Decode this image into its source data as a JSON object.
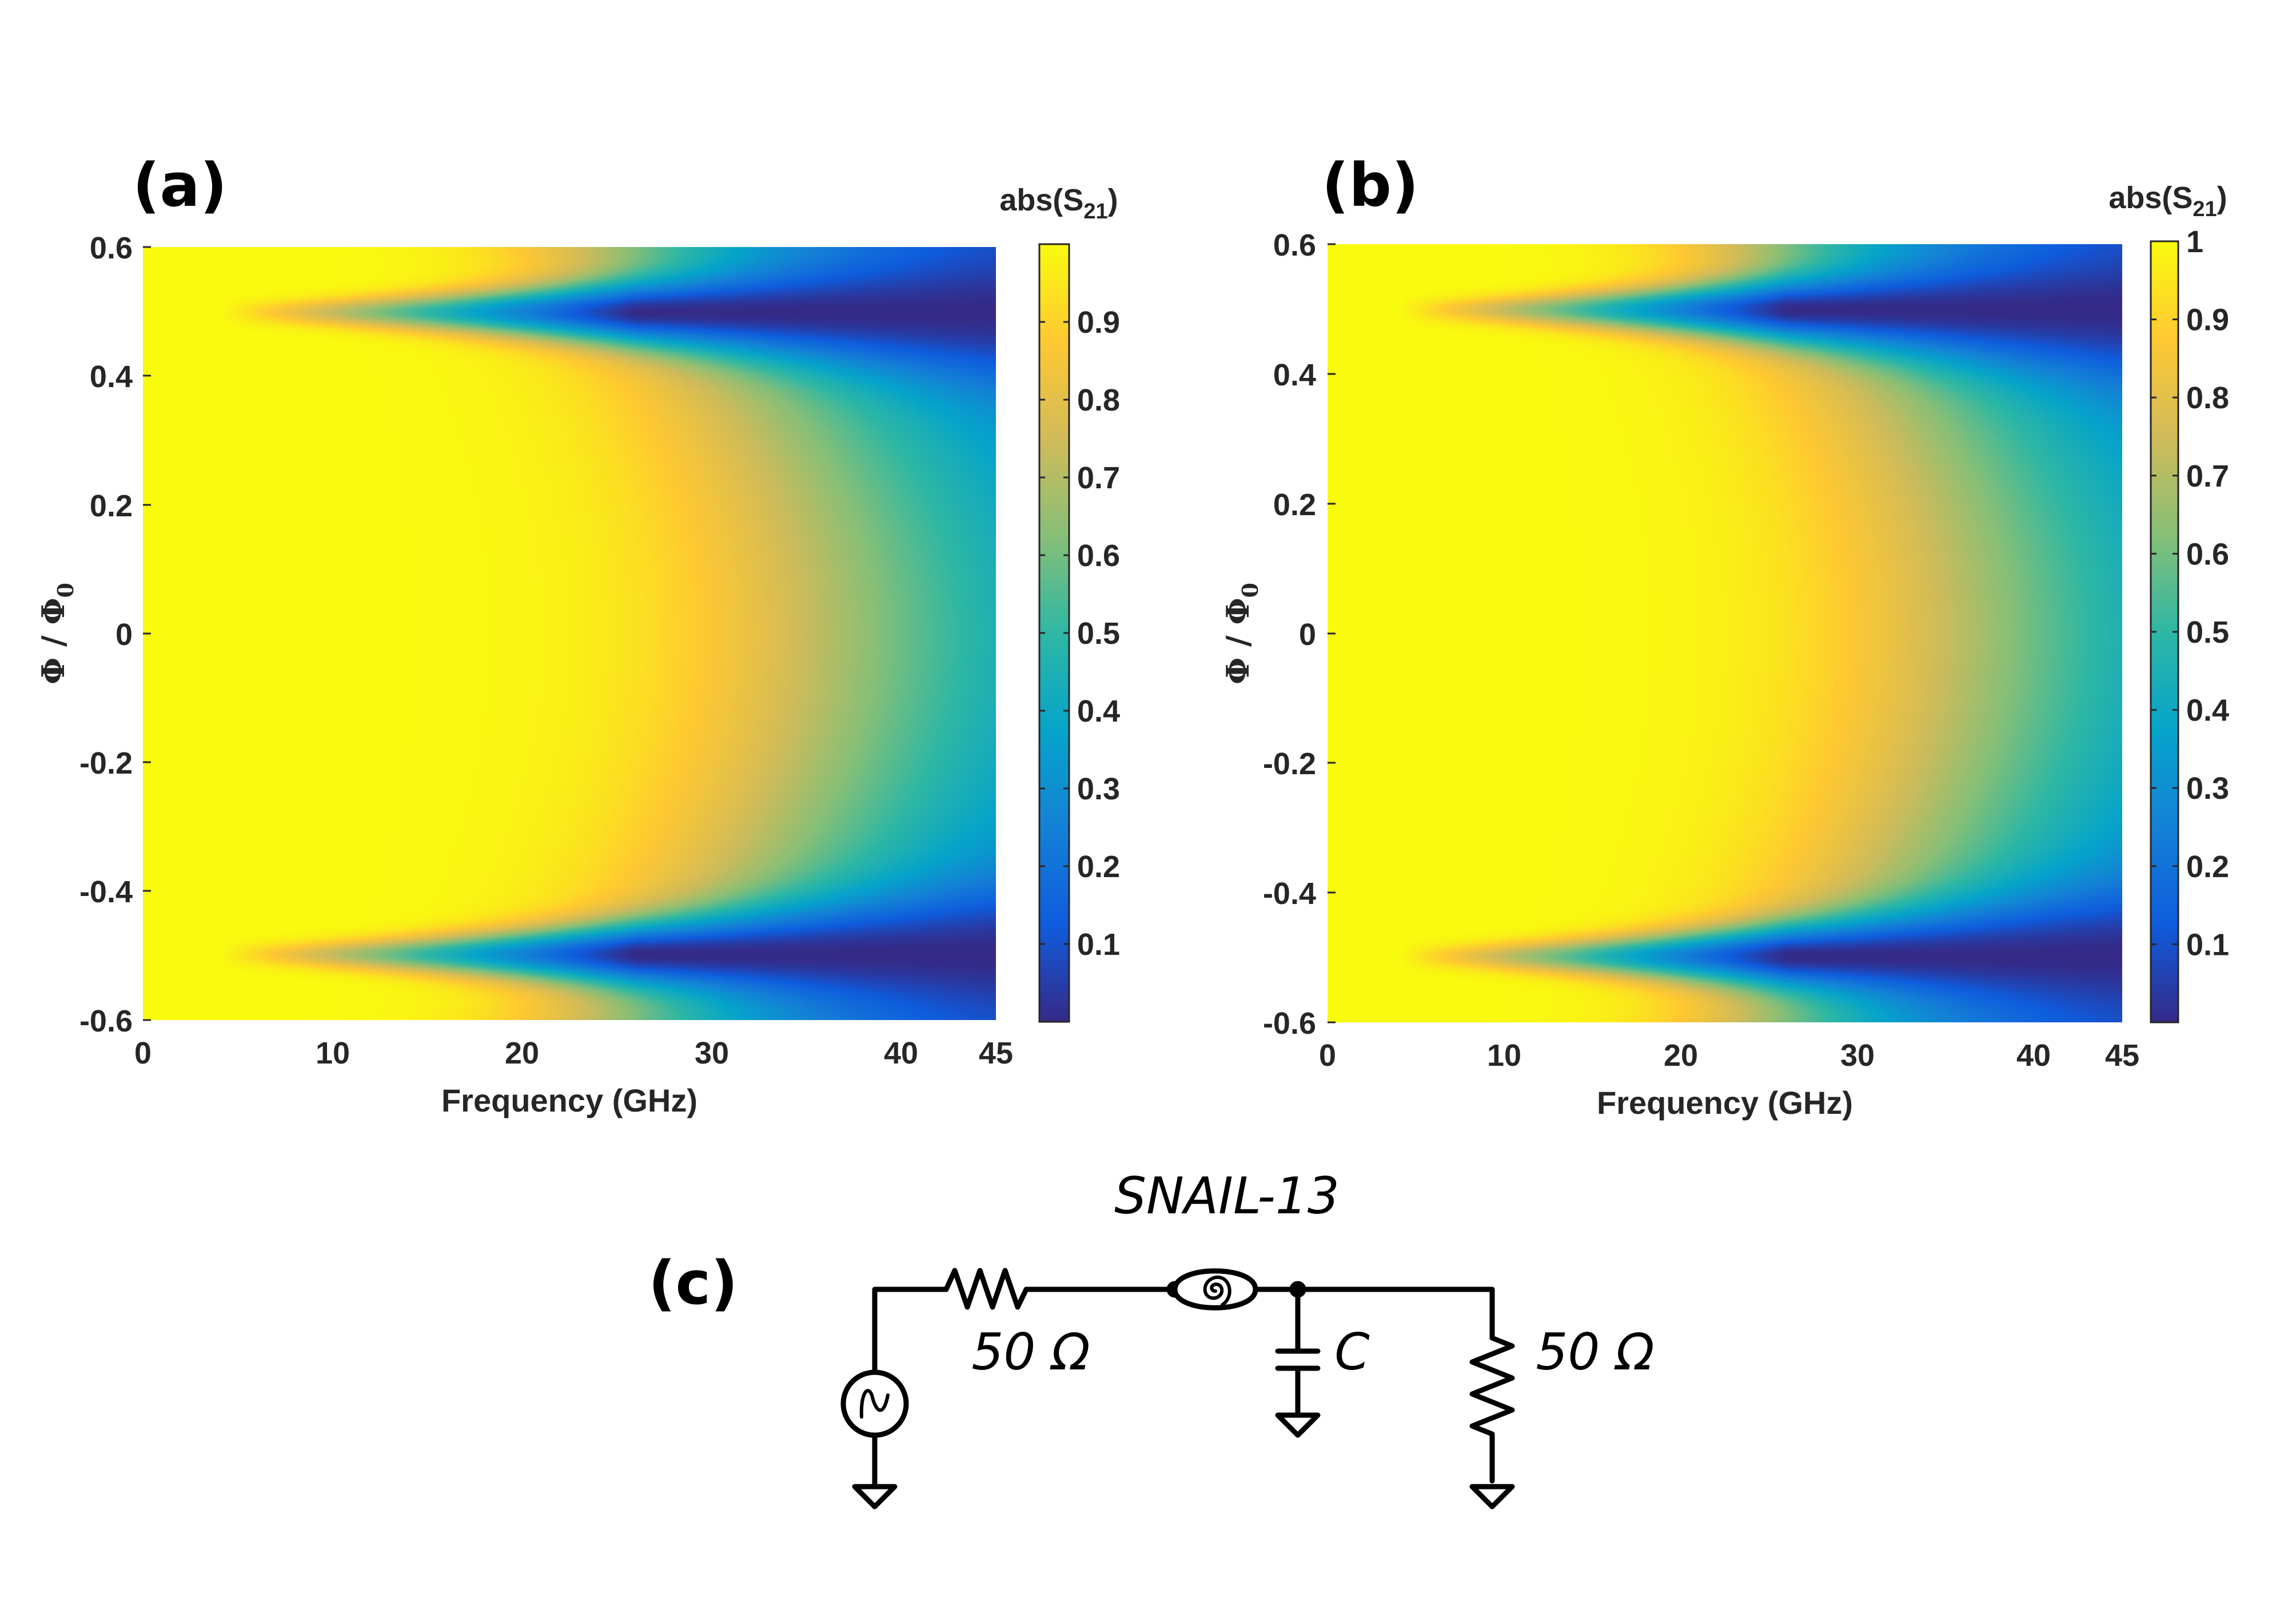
{
  "chart_data": [
    {
      "type": "heatmap",
      "panel_label": "(a)",
      "xlabel": "Frequency (GHz)",
      "ylabel_main": "Φ / Φ",
      "ylabel_sub": "0",
      "xlim": [
        0,
        45
      ],
      "ylim": [
        -0.6,
        0.6
      ],
      "xticks": [
        "0",
        "10",
        "20",
        "30",
        "40",
        "45"
      ],
      "yticks": [
        "0.6",
        "0.4",
        "0.2",
        "0",
        "-0.2",
        "-0.4",
        "-0.6"
      ],
      "colorbar_title_main": "abs(S",
      "colorbar_title_sub": "21",
      "colorbar_title_end": ")",
      "clim": [
        0,
        1
      ],
      "colorbar_ticks": [
        "0.9",
        "0.8",
        "0.7",
        "0.6",
        "0.5",
        "0.4",
        "0.3",
        "0.2",
        "0.1"
      ],
      "model": {
        "cutoff_ghz_at_zero_flux": 36,
        "dip_flux": 0.5,
        "valley_min": 0.0
      }
    },
    {
      "type": "heatmap",
      "panel_label": "(b)",
      "xlabel": "Frequency (GHz)",
      "ylabel_main": "Φ / Φ",
      "ylabel_sub": "0",
      "xlim": [
        0,
        45
      ],
      "ylim": [
        -0.6,
        0.6
      ],
      "xticks": [
        "0",
        "10",
        "20",
        "30",
        "40",
        "45"
      ],
      "yticks": [
        "0.6",
        "0.4",
        "0.2",
        "0",
        "-0.2",
        "-0.4",
        "-0.6"
      ],
      "colorbar_title_main": "abs(S",
      "colorbar_title_sub": "21",
      "colorbar_title_end": ")",
      "clim": [
        0,
        1
      ],
      "colorbar_ticks": [
        "1",
        "0.9",
        "0.8",
        "0.7",
        "0.6",
        "0.5",
        "0.4",
        "0.3",
        "0.2",
        "0.1"
      ],
      "model": {
        "cutoff_ghz_at_zero_flux": 36,
        "dip_flux": 0.5,
        "valley_min": 0.0
      }
    }
  ],
  "circuit": {
    "panel_label": "(c)",
    "element_label": "SNAIL-13",
    "source_resistor_label": "50 Ω",
    "capacitor_label": "C",
    "load_resistor_label": "50 Ω"
  },
  "colors": {
    "text": "#262626",
    "parula": [
      "#352a87",
      "#0f5cdd",
      "#1481d6",
      "#06a4ca",
      "#2eb7a4",
      "#87bf77",
      "#d1bb59",
      "#fec832",
      "#f9fb0e"
    ]
  }
}
